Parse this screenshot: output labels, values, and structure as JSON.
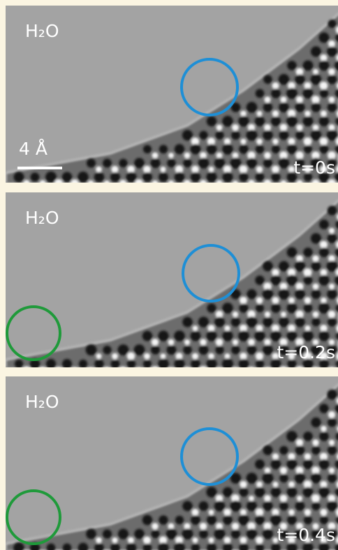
{
  "panels": [
    {
      "solvent": "H₂O",
      "time": "t=0s",
      "scale_bar": "4 Å"
    },
    {
      "solvent": "H₂O",
      "time": "t=0.2s"
    },
    {
      "solvent": "H₂O",
      "time": "t=0.4s"
    }
  ]
}
